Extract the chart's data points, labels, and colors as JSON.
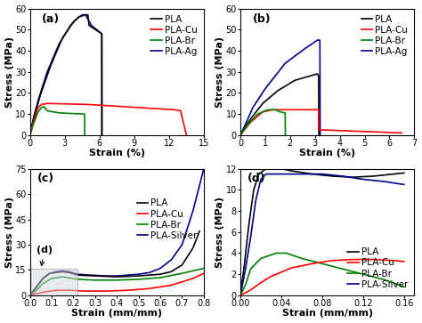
{
  "fig_bg": "#ffffff",
  "subplot_bg": "#ffffff",
  "label_fontsize": 8,
  "tick_fontsize": 7,
  "legend_fontsize": 7.5,
  "line_width": 1.2,
  "colors": {
    "PLA": "#000000",
    "PLA-Cu": "#ff0000",
    "PLA-Br": "#008000",
    "PLA-Ag": "#00008b",
    "PLA-Silver": "#00008b"
  },
  "panel_a": {
    "label": "(a)",
    "xlabel": "Strain (%)",
    "ylabel": "Stress (MPa)",
    "xlim": [
      0,
      15
    ],
    "ylim": [
      0,
      60
    ],
    "xticks": [
      0,
      3,
      6,
      9,
      12,
      15
    ],
    "yticks": [
      0,
      10,
      20,
      30,
      40,
      50,
      60
    ]
  },
  "panel_b": {
    "label": "(b)",
    "xlabel": "Strain (%)",
    "ylabel": "Stress (MPa)",
    "xlim": [
      0,
      7
    ],
    "ylim": [
      0,
      60
    ],
    "xticks": [
      0,
      1,
      2,
      3,
      4,
      5,
      6,
      7
    ],
    "yticks": [
      0,
      10,
      20,
      30,
      40,
      50,
      60
    ]
  },
  "panel_c": {
    "label": "(c)",
    "xlabel": "Strain (mm/mm)",
    "ylabel": "Stress (MPa)",
    "xlim": [
      0,
      0.8
    ],
    "ylim": [
      0,
      75
    ],
    "xticks": [
      0.0,
      0.1,
      0.2,
      0.3,
      0.4,
      0.5,
      0.6,
      0.7,
      0.8
    ],
    "yticks": [
      0,
      15,
      30,
      45,
      60,
      75
    ]
  },
  "panel_d": {
    "label": "(d)",
    "xlabel": "Strain (mm/mm)",
    "ylabel": "Stress (MPa)",
    "xlim": [
      0,
      0.17
    ],
    "ylim": [
      0,
      12
    ],
    "xticks": [
      0.0,
      0.04,
      0.08,
      0.12,
      0.16
    ],
    "yticks": [
      0,
      2,
      4,
      6,
      8,
      10,
      12
    ]
  }
}
